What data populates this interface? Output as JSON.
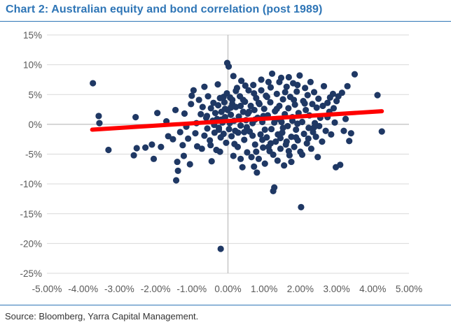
{
  "title": "Chart 2: Australian equity and bond correlation (post 1989)",
  "source": "Source: Bloomberg, Yarra Capital Management.",
  "colors": {
    "title": "#2e75b6",
    "rule": "#2e75b6",
    "points": "#1f3864",
    "trendline": "#ff0000",
    "grid": "#d9d9d9",
    "axis": "#bfbfbf",
    "ticks": "#595959"
  },
  "chart_data": {
    "type": "scatter",
    "title": "Chart 2: Australian equity and bond correlation (post 1989)",
    "xlabel": "",
    "ylabel": "",
    "xlim": [
      -0.05,
      0.05
    ],
    "ylim": [
      -0.25,
      0.15
    ],
    "x_ticks": [
      -0.05,
      -0.04,
      -0.03,
      -0.02,
      -0.01,
      0.0,
      0.01,
      0.02,
      0.03,
      0.04,
      0.05
    ],
    "x_tick_labels": [
      "-5.00%",
      "-4.00%",
      "-3.00%",
      "-2.00%",
      "-1.00%",
      "0.00%",
      "1.00%",
      "2.00%",
      "3.00%",
      "4.00%",
      "5.00%"
    ],
    "y_ticks": [
      0.15,
      0.1,
      0.05,
      0.0,
      -0.05,
      -0.1,
      -0.15,
      -0.2,
      -0.25
    ],
    "y_tick_labels": [
      "15%",
      "10%",
      "5%",
      "0%",
      "-5%",
      "-10%",
      "-15%",
      "-20%",
      "-25%"
    ],
    "grid": "horizontal",
    "legend": "none",
    "trendline": {
      "x": [
        -0.0375,
        0.0425
      ],
      "y": [
        -0.009,
        0.022
      ]
    },
    "points": [
      [
        -0.0373,
        0.069
      ],
      [
        -0.0357,
        0.014
      ],
      [
        -0.0355,
        0.002
      ],
      [
        -0.033,
        -0.043
      ],
      [
        -0.026,
        -0.052
      ],
      [
        -0.0255,
        0.012
      ],
      [
        -0.0252,
        -0.04
      ],
      [
        -0.0228,
        -0.039
      ],
      [
        -0.021,
        -0.034
      ],
      [
        -0.0195,
        0.019
      ],
      [
        -0.0205,
        -0.058
      ],
      [
        -0.0185,
        -0.038
      ],
      [
        -0.017,
        0.005
      ],
      [
        -0.0165,
        -0.02
      ],
      [
        -0.0152,
        -0.025
      ],
      [
        -0.0145,
        0.024
      ],
      [
        -0.014,
        -0.063
      ],
      [
        -0.0138,
        -0.078
      ],
      [
        -0.0143,
        -0.094
      ],
      [
        -0.0132,
        -0.013
      ],
      [
        -0.0125,
        -0.035
      ],
      [
        -0.0122,
        -0.053
      ],
      [
        -0.012,
        0.018
      ],
      [
        -0.0115,
        -0.004
      ],
      [
        -0.011,
        -0.024
      ],
      [
        -0.0105,
        -0.067
      ],
      [
        -0.0102,
        0.034
      ],
      [
        -0.01,
        0.048
      ],
      [
        -0.0095,
        0.057
      ],
      [
        -0.009,
        -0.015
      ],
      [
        -0.0087,
        0.002
      ],
      [
        -0.0085,
        -0.037
      ],
      [
        -0.008,
        0.041
      ],
      [
        -0.0075,
        0.017
      ],
      [
        -0.0072,
        -0.041
      ],
      [
        -0.007,
        0.029
      ],
      [
        -0.0065,
        -0.019
      ],
      [
        -0.006,
        0.011
      ],
      [
        -0.0057,
        -0.007
      ],
      [
        -0.0055,
        0.047
      ],
      [
        -0.005,
        -0.027
      ],
      [
        -0.0047,
        0.027
      ],
      [
        -0.0045,
        -0.062
      ],
      [
        -0.0042,
        0.006
      ],
      [
        -0.004,
        0.036
      ],
      [
        -0.0037,
        -0.014
      ],
      [
        -0.0035,
        0.019
      ],
      [
        -0.0032,
        -0.043
      ],
      [
        -0.003,
        0.009
      ],
      [
        -0.0027,
        0.032
      ],
      [
        -0.0025,
        -0.009
      ],
      [
        -0.0022,
        0.044
      ],
      [
        -0.002,
        -0.022
      ],
      [
        -0.0018,
        0.021
      ],
      [
        -0.0015,
        0.003
      ],
      [
        -0.0012,
        -0.016
      ],
      [
        -0.001,
        0.037
      ],
      [
        -0.0008,
        0.012
      ],
      [
        -0.0005,
        -0.031
      ],
      [
        -0.0003,
        0.052
      ],
      [
        -0.0001,
        0.024
      ],
      [
        -0.0002,
        0.103
      ],
      [
        0.0002,
        0.097
      ],
      [
        -0.0028,
        0.067
      ],
      [
        -0.0065,
        0.063
      ],
      [
        -0.002,
        -0.209
      ],
      [
        0.0003,
        -0.008
      ],
      [
        0.0006,
        0.045
      ],
      [
        0.0008,
        0.016
      ],
      [
        0.001,
        -0.02
      ],
      [
        0.0012,
        0.034
      ],
      [
        0.0015,
        0.081
      ],
      [
        0.0017,
        0.006
      ],
      [
        0.002,
        -0.011
      ],
      [
        0.0022,
        0.029
      ],
      [
        0.0025,
        0.061
      ],
      [
        0.0027,
        -0.038
      ],
      [
        0.003,
        0.013
      ],
      [
        0.0033,
        0.047
      ],
      [
        0.0035,
        -0.002
      ],
      [
        0.0037,
        0.073
      ],
      [
        0.004,
        -0.072
      ],
      [
        0.0042,
        0.021
      ],
      [
        0.0045,
        -0.026
      ],
      [
        0.0047,
        0.038
      ],
      [
        0.005,
        0.007
      ],
      [
        0.0053,
        -0.047
      ],
      [
        0.0055,
        0.018
      ],
      [
        0.0057,
        0.057
      ],
      [
        0.006,
        -0.012
      ],
      [
        0.0063,
        0.031
      ],
      [
        0.0065,
        -0.055
      ],
      [
        0.0068,
        0.002
      ],
      [
        0.007,
        0.066
      ],
      [
        0.0073,
        0.024
      ],
      [
        0.0075,
        -0.034
      ],
      [
        0.0078,
        0.044
      ],
      [
        0.008,
        -0.081
      ],
      [
        0.0082,
        0.011
      ],
      [
        0.0085,
        -0.058
      ],
      [
        0.0087,
        0.034
      ],
      [
        0.009,
        -0.017
      ],
      [
        0.0092,
        0.057
      ],
      [
        0.0095,
        0.004
      ],
      [
        0.0097,
        -0.039
      ],
      [
        0.01,
        0.026
      ],
      [
        0.0102,
        -0.066
      ],
      [
        0.0105,
        0.048
      ],
      [
        0.0107,
        -0.022
      ],
      [
        0.011,
        0.015
      ],
      [
        0.0112,
        0.071
      ],
      [
        0.0115,
        -0.045
      ],
      [
        0.0117,
        0.037
      ],
      [
        0.012,
        -0.008
      ],
      [
        0.0122,
        0.085
      ],
      [
        0.0125,
        -0.112
      ],
      [
        0.0128,
        -0.106
      ],
      [
        0.013,
        0.022
      ],
      [
        0.0132,
        -0.029
      ],
      [
        0.0135,
        0.051
      ],
      [
        0.0137,
        -0.061
      ],
      [
        0.014,
        0.009
      ],
      [
        0.0142,
        0.031
      ],
      [
        0.0145,
        -0.041
      ],
      [
        0.0147,
        0.078
      ],
      [
        0.015,
        -0.014
      ],
      [
        0.0152,
        0.042
      ],
      [
        0.0155,
        -0.069
      ],
      [
        0.0157,
        0.017
      ],
      [
        0.016,
        -0.034
      ],
      [
        0.0162,
        0.063
      ],
      [
        0.0165,
        -0.003
      ],
      [
        0.0167,
        0.027
      ],
      [
        0.017,
        -0.052
      ],
      [
        0.0172,
        0.046
      ],
      [
        0.0175,
        -0.021
      ],
      [
        0.0178,
        0.012
      ],
      [
        0.018,
        0.069
      ],
      [
        0.0183,
        -0.038
      ],
      [
        0.0185,
        0.033
      ],
      [
        0.0188,
        -0.009
      ],
      [
        0.019,
        0.055
      ],
      [
        0.0193,
        -0.027
      ],
      [
        0.0195,
        0.019
      ],
      [
        0.0198,
        0.082
      ],
      [
        0.02,
        -0.046
      ],
      [
        0.0202,
        -0.139
      ],
      [
        0.0205,
        0.004
      ],
      [
        0.0208,
        0.039
      ],
      [
        0.021,
        -0.016
      ],
      [
        0.0213,
        0.061
      ],
      [
        0.0215,
        0.024
      ],
      [
        0.0218,
        -0.032
      ],
      [
        0.022,
        0.049
      ],
      [
        0.0223,
        -0.006
      ],
      [
        0.0225,
        0.015
      ],
      [
        0.0228,
        0.071
      ],
      [
        0.023,
        -0.041
      ],
      [
        0.0233,
        0.034
      ],
      [
        0.0235,
        -0.013
      ],
      [
        0.0238,
        0.054
      ],
      [
        0.024,
        0.002
      ],
      [
        0.0243,
        -0.021
      ],
      [
        0.0245,
        0.028
      ],
      [
        0.0248,
        -0.055
      ],
      [
        0.025,
        0.043
      ],
      [
        0.0255,
        0.011
      ],
      [
        0.026,
        -0.029
      ],
      [
        0.0265,
        0.064
      ],
      [
        0.027,
        -0.011
      ],
      [
        0.0275,
        0.036
      ],
      [
        0.028,
        0.021
      ],
      [
        0.0285,
        -0.017
      ],
      [
        0.029,
        0.051
      ],
      [
        0.0295,
        0.003
      ],
      [
        0.0298,
        -0.072
      ],
      [
        0.03,
        0.039
      ],
      [
        0.0305,
        0.047
      ],
      [
        0.031,
        -0.068
      ],
      [
        0.0315,
        0.053
      ],
      [
        0.032,
        -0.011
      ],
      [
        0.0325,
        0.009
      ],
      [
        0.033,
        0.064
      ],
      [
        0.0335,
        -0.028
      ],
      [
        0.034,
        -0.015
      ],
      [
        0.035,
        0.084
      ],
      [
        0.0413,
        0.049
      ],
      [
        0.0425,
        -0.012
      ],
      [
        0.0018,
        -0.033
      ],
      [
        0.0035,
        -0.058
      ],
      [
        0.0072,
        -0.071
      ],
      [
        0.0095,
        -0.026
      ],
      [
        0.0125,
        -0.051
      ],
      [
        0.0145,
        -0.023
      ],
      [
        0.0175,
        -0.063
      ],
      [
        0.0205,
        -0.051
      ],
      [
        -0.0008,
        0.026
      ],
      [
        0.0012,
        0.041
      ],
      [
        0.0035,
        0.031
      ],
      [
        0.0058,
        0.021
      ],
      [
        0.0085,
        0.036
      ],
      [
        0.0108,
        0.046
      ],
      [
        0.0135,
        0.026
      ],
      [
        0.0158,
        0.054
      ],
      [
        0.0182,
        0.041
      ],
      [
        0.0212,
        0.035
      ],
      [
        -0.0038,
        -0.001
      ],
      [
        -0.0018,
        0.008
      ],
      [
        0.0005,
        0.002
      ],
      [
        0.0028,
        -0.014
      ],
      [
        0.0052,
        -0.005
      ],
      [
        0.0075,
        0.008
      ],
      [
        0.0102,
        -0.009
      ],
      [
        0.0128,
        0.003
      ],
      [
        0.0152,
        -0.006
      ],
      [
        0.0178,
        0.006
      ],
      [
        -0.0058,
        0.014
      ],
      [
        -0.0025,
        -0.006
      ],
      [
        0.0008,
        0.028
      ],
      [
        0.0042,
        0.041
      ],
      [
        0.0068,
        -0.019
      ],
      [
        0.0098,
        0.014
      ],
      [
        0.0118,
        -0.032
      ],
      [
        0.0148,
        0.004
      ],
      [
        0.0168,
        -0.045
      ],
      [
        0.0192,
        0.001
      ],
      [
        0.0222,
        -0.024
      ],
      [
        0.0252,
        -0.003
      ],
      [
        0.0275,
        0.012
      ],
      [
        0.0292,
        0.027
      ],
      [
        -0.0012,
        0.046
      ],
      [
        0.0022,
        0.056
      ],
      [
        0.0048,
        0.065
      ],
      [
        0.0072,
        0.052
      ],
      [
        0.0092,
        0.075
      ],
      [
        0.0118,
        0.062
      ],
      [
        0.0142,
        0.071
      ],
      [
        0.0168,
        0.079
      ],
      [
        0.0192,
        0.066
      ],
      [
        -0.0048,
        -0.035
      ],
      [
        -0.0022,
        -0.046
      ],
      [
        0.0015,
        -0.053
      ],
      [
        0.0045,
        -0.013
      ],
      [
        0.0078,
        -0.046
      ],
      [
        0.0112,
        -0.038
      ],
      [
        0.0138,
        -0.017
      ],
      [
        0.0162,
        -0.029
      ],
      [
        0.0188,
        -0.022
      ],
      [
        0.0238,
        -0.005
      ],
      [
        0.0262,
        0.031
      ],
      [
        0.0282,
        0.045
      ]
    ]
  }
}
